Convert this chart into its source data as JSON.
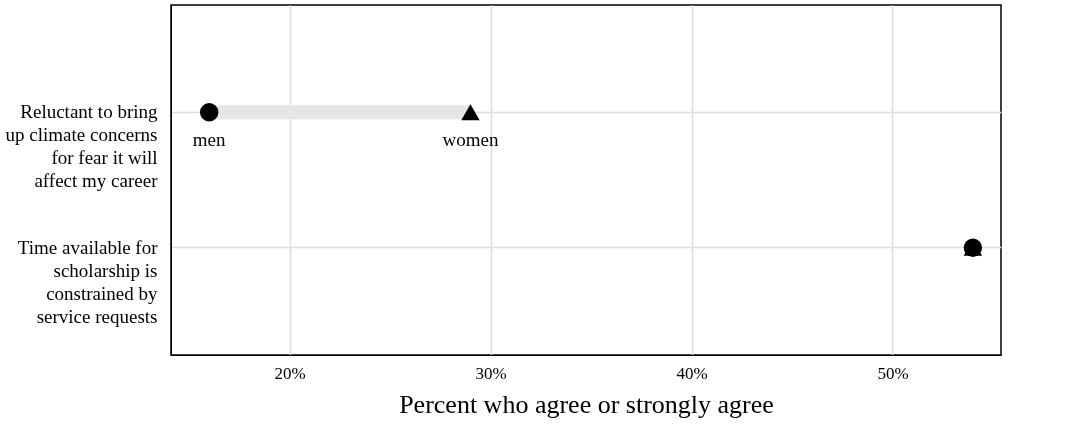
{
  "chart_data": {
    "type": "scatter",
    "orientation": "horizontal",
    "xlabel": "Percent who agree or strongly agree",
    "categories": [
      "Reluctant to bring up climate concerns for fear it will affect my career",
      "Time available for scholarship is constrained by service requests"
    ],
    "series": [
      {
        "type": "bar",
        "color": "#e5e5e5",
        "base": [
          16,
          null
        ],
        "values": [
          13,
          null
        ]
      },
      {
        "name": "men",
        "marker": "circle",
        "color": "#000000",
        "values": [
          16,
          54
        ]
      },
      {
        "name": "women",
        "marker": "triangle",
        "color": "#000000",
        "values": [
          29,
          54
        ]
      }
    ],
    "xlim": [
      14.1,
      55.4
    ],
    "xticks": [
      {
        "value": 20,
        "label": "20%"
      },
      {
        "value": 30,
        "label": "30%"
      },
      {
        "value": 40,
        "label": "40%"
      },
      {
        "value": 50,
        "label": "50%"
      }
    ],
    "grid": true,
    "legend": false
  }
}
